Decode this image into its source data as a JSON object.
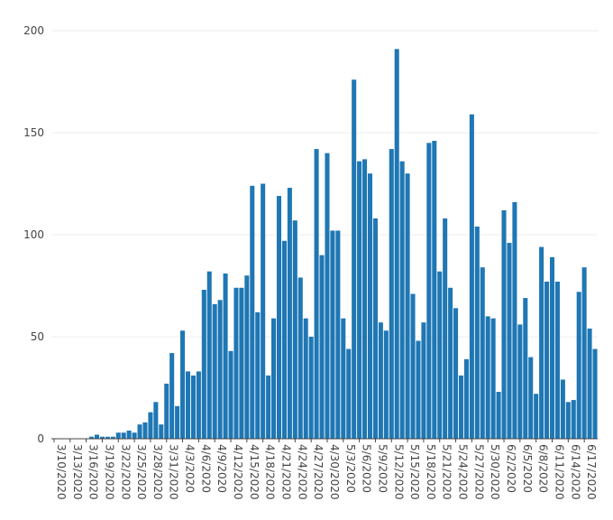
{
  "chart_data": {
    "type": "bar",
    "title": "",
    "xlabel": "",
    "ylabel": "",
    "ylim": [
      0,
      200
    ],
    "yticks": [
      0,
      50,
      100,
      150,
      200
    ],
    "grid": true,
    "bar_color": "#1f77b4",
    "start_date": "3/10/2020",
    "x_tick_every": 3,
    "values": [
      0,
      0,
      0,
      0,
      0,
      0,
      0,
      1,
      2,
      1,
      1,
      1,
      3,
      3,
      4,
      3,
      7,
      8,
      13,
      18,
      7,
      27,
      42,
      16,
      53,
      33,
      31,
      33,
      73,
      82,
      66,
      68,
      81,
      43,
      74,
      74,
      80,
      124,
      62,
      125,
      31,
      59,
      119,
      97,
      123,
      107,
      79,
      59,
      50,
      142,
      90,
      140,
      102,
      102,
      59,
      44,
      176,
      136,
      137,
      130,
      108,
      57,
      53,
      142,
      191,
      136,
      130,
      71,
      48,
      57,
      145,
      146,
      82,
      108,
      74,
      64,
      31,
      39,
      159,
      104,
      84,
      60,
      59,
      23,
      112,
      96,
      116,
      56,
      69,
      40,
      22,
      94,
      77,
      89,
      77,
      29,
      18,
      19,
      72,
      84,
      54,
      44
    ]
  }
}
